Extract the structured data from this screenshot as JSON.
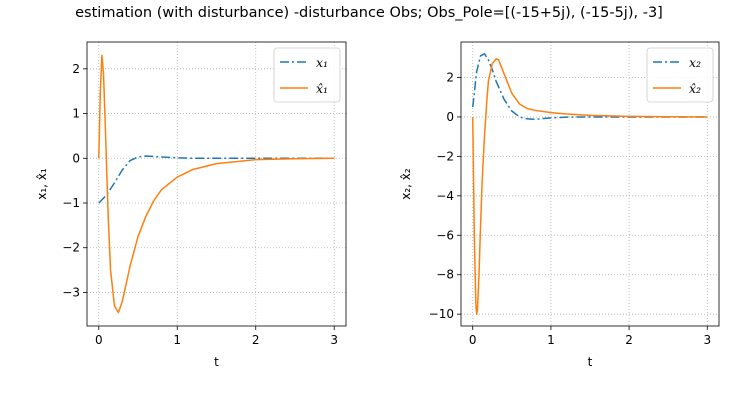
{
  "title": "estimation (with disturbance) -disturbance Obs; Obs_Pole=[(-15+5j), (-15-5j), -3]",
  "colors": {
    "series_true": "#1f77b4",
    "series_est": "#ff7f0e",
    "grid": "#b0b0b0"
  },
  "chart_data": [
    {
      "type": "line",
      "xlabel": "t",
      "ylabel": "x₁, x̂₁",
      "xlim": [
        -0.15,
        3.15
      ],
      "ylim": [
        -3.75,
        2.6
      ],
      "xticks": [
        0,
        1,
        2,
        3
      ],
      "xtick_labels": [
        "0",
        "1",
        "2",
        "3"
      ],
      "yticks": [
        -3,
        -2,
        -1,
        0,
        1,
        2
      ],
      "ytick_labels": [
        "−3",
        "−2",
        "−1",
        "0",
        "1",
        "2"
      ],
      "grid": true,
      "legend_position": "top-right",
      "series": [
        {
          "name": "x₁",
          "style": "dashdot",
          "color": "#1f77b4",
          "x": [
            0,
            0.1,
            0.2,
            0.3,
            0.4,
            0.5,
            0.6,
            0.7,
            0.8,
            1.0,
            1.2,
            1.5,
            2.0,
            2.5,
            3.0
          ],
          "y": [
            -1.0,
            -0.82,
            -0.55,
            -0.26,
            -0.05,
            0.03,
            0.05,
            0.04,
            0.03,
            0.01,
            0.0,
            0.0,
            0.0,
            0.0,
            0.0
          ]
        },
        {
          "name": "x̂₁",
          "style": "solid",
          "color": "#ff7f0e",
          "x": [
            0,
            0.02,
            0.04,
            0.06,
            0.08,
            0.1,
            0.12,
            0.15,
            0.2,
            0.25,
            0.3,
            0.35,
            0.4,
            0.5,
            0.6,
            0.7,
            0.8,
            1.0,
            1.2,
            1.5,
            2.0,
            2.5,
            3.0
          ],
          "y": [
            0,
            1.5,
            2.3,
            1.9,
            0.9,
            -0.2,
            -1.3,
            -2.5,
            -3.3,
            -3.45,
            -3.2,
            -2.8,
            -2.4,
            -1.75,
            -1.3,
            -0.95,
            -0.7,
            -0.42,
            -0.25,
            -0.12,
            -0.03,
            -0.01,
            0.0
          ]
        }
      ]
    },
    {
      "type": "line",
      "xlabel": "t",
      "ylabel": "x₂, x̂₂",
      "xlim": [
        -0.15,
        3.15
      ],
      "ylim": [
        -10.6,
        3.8
      ],
      "xticks": [
        0,
        1,
        2,
        3
      ],
      "xtick_labels": [
        "0",
        "1",
        "2",
        "3"
      ],
      "yticks": [
        -10,
        -8,
        -6,
        -4,
        -2,
        0,
        2
      ],
      "ytick_labels": [
        "−10",
        "−8",
        "−6",
        "−4",
        "−2",
        "0",
        "2"
      ],
      "grid": true,
      "legend_position": "top-right",
      "series": [
        {
          "name": "x₂",
          "style": "dashdot",
          "color": "#1f77b4",
          "x": [
            0,
            0.05,
            0.1,
            0.15,
            0.2,
            0.25,
            0.3,
            0.4,
            0.5,
            0.6,
            0.7,
            0.8,
            1.0,
            1.2,
            1.5,
            2.0,
            2.5,
            3.0
          ],
          "y": [
            0.5,
            2.3,
            3.1,
            3.2,
            2.9,
            2.4,
            1.8,
            0.9,
            0.3,
            0.0,
            -0.1,
            -0.12,
            -0.05,
            -0.01,
            0.0,
            0.0,
            0.0,
            0.0
          ]
        },
        {
          "name": "x̂₂",
          "style": "solid",
          "color": "#ff7f0e",
          "x": [
            0,
            0.02,
            0.04,
            0.05,
            0.06,
            0.08,
            0.1,
            0.12,
            0.15,
            0.18,
            0.2,
            0.25,
            0.3,
            0.33,
            0.4,
            0.5,
            0.6,
            0.7,
            0.8,
            1.0,
            1.2,
            1.5,
            2.0,
            2.5,
            3.0
          ],
          "y": [
            0,
            -6.0,
            -9.5,
            -10.0,
            -9.8,
            -8.0,
            -5.5,
            -3.3,
            -1.0,
            0.8,
            1.8,
            2.7,
            2.95,
            2.9,
            2.2,
            1.2,
            0.65,
            0.42,
            0.33,
            0.22,
            0.15,
            0.08,
            0.03,
            0.01,
            0.0
          ]
        }
      ]
    }
  ]
}
